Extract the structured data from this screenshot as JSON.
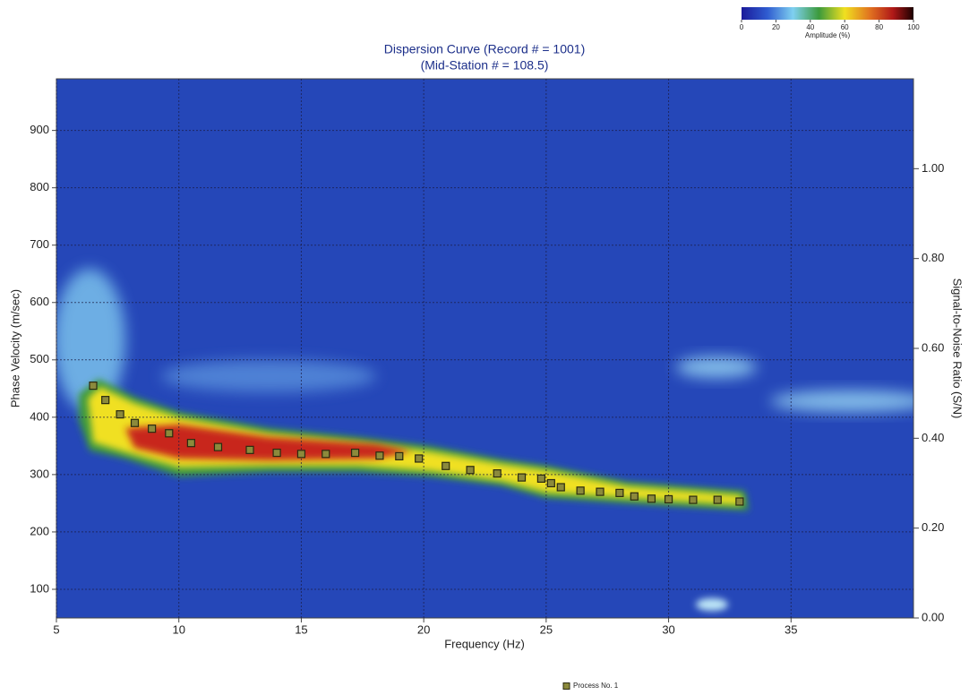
{
  "chart_data": {
    "type": "scatter",
    "title": "Dispersion Curve (Record # = 1001)",
    "subtitle": "(Mid-Station # = 108.5)",
    "xlabel": "Frequency (Hz)",
    "ylabel": "Phase Velocity (m/sec)",
    "y2label": "Signal-to-Noise Ratio (S/N)",
    "xlim": [
      5,
      40
    ],
    "xticks": [
      5,
      10,
      15,
      20,
      25,
      30,
      35
    ],
    "ylim": [
      50,
      990
    ],
    "yticks": [
      100,
      200,
      300,
      400,
      500,
      600,
      700,
      800,
      900
    ],
    "y2lim": [
      0,
      1.2
    ],
    "y2ticks": [
      {
        "value": 0,
        "label": "0.00"
      },
      {
        "value": 0.2,
        "label": "0.20"
      },
      {
        "value": 0.4,
        "label": "0.40"
      },
      {
        "value": 0.6,
        "label": "0.60"
      },
      {
        "value": 0.8,
        "label": "0.80"
      },
      {
        "value": 1.0,
        "label": "1.00"
      }
    ],
    "grid": true,
    "legend": "bottom",
    "x": [
      6.5,
      7,
      7.6,
      8.2,
      8.9,
      9.6,
      10.5,
      11.6,
      12.9,
      14,
      15,
      16,
      17.2,
      18.2,
      19,
      19.8,
      20.9,
      21.9,
      23,
      24,
      24.8,
      25.2,
      25.6,
      26.4,
      27.2,
      28,
      28.6,
      29.3,
      30,
      31,
      32,
      32.9
    ],
    "series": [
      {
        "name": "Process No. 1",
        "color": "#8c8a3c",
        "values": [
          455,
          430,
          405,
          390,
          380,
          372,
          355,
          348,
          343,
          338,
          336,
          336,
          338,
          333,
          332,
          328,
          315,
          308,
          302,
          295,
          293,
          285,
          278,
          272,
          270,
          268,
          262,
          258,
          257,
          256,
          256,
          253
        ]
      }
    ],
    "colorbar": {
      "label": "Amplitude (%)",
      "lim": [
        0,
        100
      ],
      "ticks": [
        0,
        20,
        40,
        60,
        80,
        100
      ]
    }
  }
}
